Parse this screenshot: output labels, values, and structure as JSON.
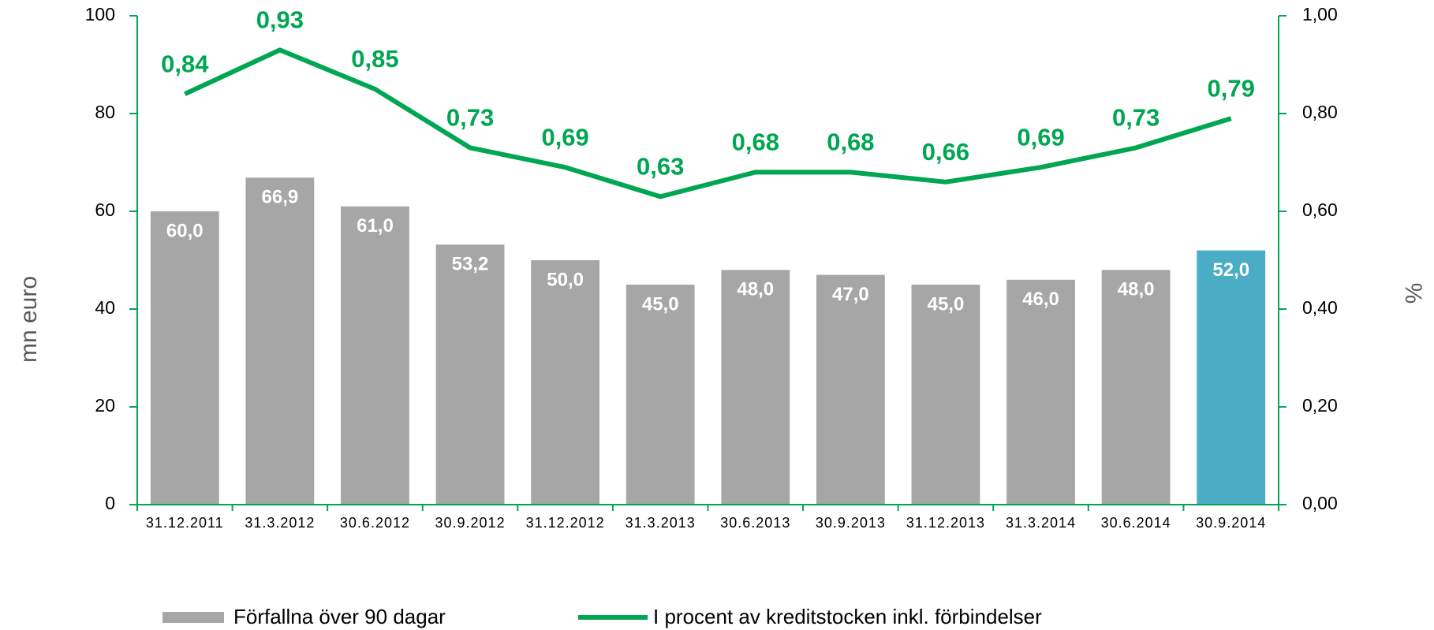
{
  "chart_data": {
    "type": "bar_line",
    "categories": [
      "31.12.2011",
      "31.3.2012",
      "30.6.2012",
      "30.9.2012",
      "31.12.2012",
      "31.3.2013",
      "30.6.2013",
      "30.9.2013",
      "31.12.2013",
      "31.3.2014",
      "30.6.2014",
      "30.9.2014"
    ],
    "ylabel": "mn euro",
    "y2label": "%",
    "ylim": [
      0,
      100
    ],
    "yticks": [
      0,
      20,
      40,
      60,
      80,
      100
    ],
    "y2lim": [
      0,
      1
    ],
    "y2ticks": [
      {
        "value": 0,
        "label": "0,00"
      },
      {
        "value": 0.2,
        "label": "0,20"
      },
      {
        "value": 0.4,
        "label": "0,40"
      },
      {
        "value": 0.6,
        "label": "0,60"
      },
      {
        "value": 0.8,
        "label": "0,80"
      },
      {
        "value": 1,
        "label": "1,00"
      }
    ],
    "series": [
      {
        "name": "Förfallna över 90 dagar",
        "type": "bar",
        "color": "#a6a6a6",
        "colors": [
          "#a6a6a6",
          "#a6a6a6",
          "#a6a6a6",
          "#a6a6a6",
          "#a6a6a6",
          "#a6a6a6",
          "#a6a6a6",
          "#a6a6a6",
          "#a6a6a6",
          "#a6a6a6",
          "#a6a6a6",
          "#4bacc6"
        ],
        "values": [
          60.0,
          66.9,
          61.0,
          53.2,
          50.0,
          45.0,
          48.0,
          47.0,
          45.0,
          46.0,
          48.0,
          52.0
        ],
        "value_labels": [
          "60,0",
          "66,9",
          "61,0",
          "53,2",
          "50,0",
          "45,0",
          "48,0",
          "47,0",
          "45,0",
          "46,0",
          "48,0",
          "52,0"
        ]
      },
      {
        "name": "I procent av kreditstocken inkl. förbindelser",
        "type": "line",
        "axis": "y2",
        "color": "#00a651",
        "values": [
          0.84,
          0.93,
          0.85,
          0.73,
          0.69,
          0.63,
          0.68,
          0.68,
          0.66,
          0.69,
          0.73,
          0.79
        ],
        "value_labels": [
          "0,84",
          "0,93",
          "0,85",
          "0,73",
          "0,69",
          "0,63",
          "0,68",
          "0,68",
          "0,66",
          "0,69",
          "0,73",
          "0,79"
        ]
      }
    ]
  }
}
